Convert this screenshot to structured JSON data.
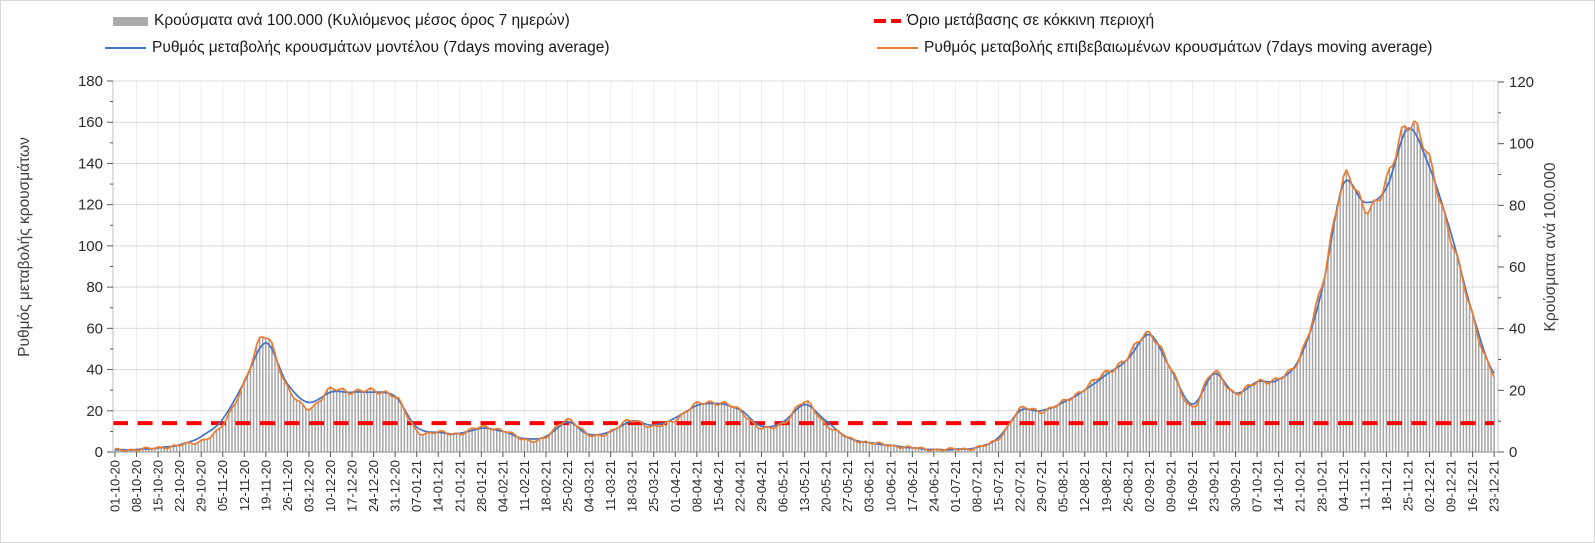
{
  "legend": {
    "items": [
      {
        "key": "cases_bar",
        "label": "Κρούσματα ανά 100.000 (Κυλιόμενος μέσος όρος 7 ημερών)",
        "swatch": "bar",
        "color": "#ABABAB"
      },
      {
        "key": "model_line",
        "label": "Ρυθμός μεταβολής κρουσμάτων μοντέλου (7days moving average)",
        "swatch": "line",
        "color": "#4472C4"
      },
      {
        "key": "threshold",
        "label": "Όριο μετάβασης σε κόκκινη περιοχή",
        "swatch": "dashed-line",
        "color": "#FF0000"
      },
      {
        "key": "confirmed_line",
        "label": "Ρυθμός μεταβολής επιβεβαιωμένων κρουσμάτων (7days moving average)",
        "swatch": "line",
        "color": "#ED7D31"
      }
    ]
  },
  "chart_data": {
    "type": "combo",
    "title": "",
    "left_axis": {
      "title": "Ρυθμός μεταβολής κρουσμάτων",
      "min": 0,
      "max": 180,
      "step": 20,
      "minor_step": 10
    },
    "right_axis": {
      "title": "Κρούσματα ανά 100.000",
      "min": 0,
      "max": 120,
      "step": 20,
      "minor_step": 10
    },
    "grid": true,
    "legend_position": "top",
    "x_interval_days": 7,
    "categories": [
      "01-10-20",
      "08-10-20",
      "15-10-20",
      "22-10-20",
      "29-10-20",
      "05-11-20",
      "12-11-20",
      "19-11-20",
      "26-11-20",
      "03-12-20",
      "10-12-20",
      "17-12-20",
      "24-12-20",
      "31-12-20",
      "07-01-21",
      "14-01-21",
      "21-01-21",
      "28-01-21",
      "04-02-21",
      "11-02-21",
      "18-02-21",
      "25-02-21",
      "04-03-21",
      "11-03-21",
      "18-03-21",
      "25-03-21",
      "01-04-21",
      "08-04-21",
      "15-04-21",
      "22-04-21",
      "29-04-21",
      "06-05-21",
      "13-05-21",
      "20-05-21",
      "27-05-21",
      "03-06-21",
      "10-06-21",
      "17-06-21",
      "24-06-21",
      "01-07-21",
      "08-07-21",
      "15-07-21",
      "22-07-21",
      "29-07-21",
      "05-08-21",
      "12-08-21",
      "19-08-21",
      "26-08-21",
      "02-09-21",
      "09-09-21",
      "16-09-21",
      "23-09-21",
      "30-09-21",
      "07-10-21",
      "14-10-21",
      "21-10-21",
      "28-10-21",
      "04-11-21",
      "11-11-21",
      "18-11-21",
      "25-11-21",
      "02-12-21",
      "09-12-21",
      "16-12-21",
      "23-12-21"
    ],
    "threshold_line": {
      "label": "Όριο μετάβασης σε κόκκινη περιοχή",
      "axis": "left",
      "value": 14,
      "color": "#FF0000",
      "style": "dashed"
    },
    "series": [
      {
        "name": "Κρούσματα ανά 100.000 (Κυλιόμενος μέσος όρος 7 ημερών)",
        "type": "bar",
        "axis": "right",
        "color": "#A6A6A6",
        "values": [
          0.7,
          0.8,
          1.3,
          2.2,
          3.7,
          8.7,
          22.7,
          37.8,
          20.7,
          14.4,
          20.1,
          19.7,
          19.7,
          18.1,
          7.0,
          6.4,
          6.0,
          8.0,
          7.0,
          4.0,
          4.7,
          10.7,
          5.3,
          6.7,
          10.4,
          8.0,
          10.7,
          15.4,
          16.0,
          13.4,
          7.7,
          9.4,
          16.0,
          9.0,
          4.7,
          3.0,
          2.1,
          1.3,
          0.8,
          0.9,
          1.5,
          4.3,
          13.7,
          13.4,
          16.0,
          20.7,
          25.7,
          30.8,
          38.8,
          26.7,
          14.7,
          26.1,
          18.7,
          23.1,
          23.4,
          31.4,
          53.5,
          88.2,
          79.6,
          86.9,
          107.6,
          93.6,
          69.5,
          44.1,
          24.7
        ]
      },
      {
        "name": "Ρυθμός μεταβολής κρουσμάτων μοντέλου (7days moving average)",
        "type": "line",
        "axis": "left",
        "color": "#4472C4",
        "values": [
          1,
          1.2,
          2,
          3.5,
          7.5,
          16,
          34,
          53,
          33,
          24,
          29,
          29,
          29,
          27,
          12,
          9.5,
          9,
          11.5,
          10,
          6.5,
          7.5,
          14.5,
          8.5,
          10,
          15,
          13,
          16.5,
          22.5,
          23.5,
          20.5,
          12.5,
          14.5,
          23,
          15,
          7,
          4.5,
          3.2,
          2,
          1.2,
          1.3,
          2.2,
          7,
          20,
          20,
          24,
          30,
          37.5,
          45,
          57,
          40,
          23,
          38,
          28.5,
          34,
          35,
          46,
          78,
          130,
          121,
          128,
          157,
          138,
          106,
          67,
          38
        ]
      },
      {
        "name": "Ρυθμός μεταβολής επιβεβαιωμένων κρουσμάτων (7days moving average)",
        "type": "line",
        "axis": "left",
        "color": "#ED7D31",
        "values": [
          1,
          1.2,
          2,
          3.3,
          5.5,
          13,
          34,
          56.5,
          31,
          21.5,
          30,
          29.5,
          29.5,
          27,
          10.5,
          9.5,
          9,
          12,
          10.5,
          6,
          7,
          16,
          8,
          10,
          15.5,
          12,
          16,
          23,
          24,
          20,
          11.5,
          14,
          24,
          13.5,
          7,
          4.5,
          3.2,
          2,
          1.2,
          1.3,
          2.2,
          6.5,
          20.5,
          20,
          24,
          31,
          38.5,
          46,
          58,
          40,
          22,
          39,
          28,
          34.5,
          35,
          47,
          80,
          132,
          119,
          130,
          161,
          140,
          104,
          66,
          37
        ]
      }
    ]
  }
}
